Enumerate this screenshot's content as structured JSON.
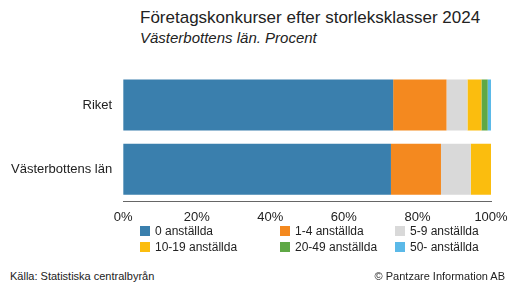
{
  "chart_data": {
    "type": "bar",
    "title": "Företagskonkurser efter storleksklasser 2024",
    "subtitle": "Västerbottens län. Procent",
    "source": "Källa: Statistiska centralbyrån",
    "copyright": "© Pantzare Information AB",
    "orientation": "horizontal",
    "stacked": true,
    "grid": false,
    "legend": "bottom",
    "categories": [
      "Riket",
      "Västerbottens län"
    ],
    "series": [
      {
        "name": "0 anställda",
        "color": "#3a7fad",
        "values": [
          73.4,
          72.8
        ]
      },
      {
        "name": "1-4 anställda",
        "color": "#f4891f",
        "values": [
          14.5,
          13.6
        ]
      },
      {
        "name": "5-9 anställda",
        "color": "#d9d9d9",
        "values": [
          5.7,
          8.1
        ]
      },
      {
        "name": "10-19 anställda",
        "color": "#fbbd0e",
        "values": [
          3.8,
          5.5
        ]
      },
      {
        "name": "20-49 anställda",
        "color": "#5fa845",
        "values": [
          1.7,
          0
        ]
      },
      {
        "name": "50- anställda",
        "color": "#5bb9e8",
        "values": [
          0.9,
          0
        ]
      }
    ],
    "xlim": [
      0,
      100
    ],
    "xticks": [
      {
        "value": 0,
        "label": "0%"
      },
      {
        "value": 20,
        "label": "20%"
      },
      {
        "value": 40,
        "label": "40%"
      },
      {
        "value": 60,
        "label": "60%"
      },
      {
        "value": 80,
        "label": "80%"
      },
      {
        "value": 100,
        "label": "100%"
      }
    ]
  }
}
